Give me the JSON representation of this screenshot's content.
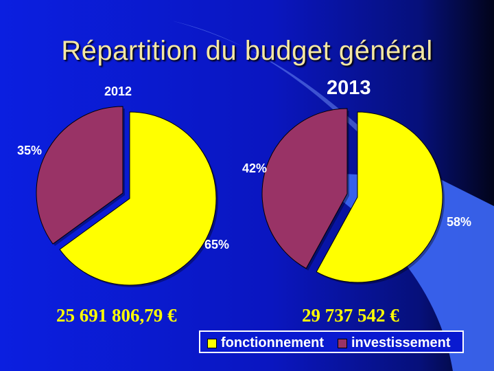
{
  "title": "Répartition du budget général",
  "chart_data": [
    {
      "type": "pie",
      "title": "2012",
      "categories": [
        "fonctionnement",
        "investissement"
      ],
      "values": [
        65,
        35
      ],
      "value_labels": [
        "65%",
        "35%"
      ],
      "total": "25 691 806,79 €",
      "colors": [
        "#ffff00",
        "#993366"
      ]
    },
    {
      "type": "pie",
      "title": "2013",
      "categories": [
        "fonctionnement",
        "investissement"
      ],
      "values": [
        58,
        42
      ],
      "value_labels": [
        "58%",
        "42%"
      ],
      "total": "29 737 542 €",
      "colors": [
        "#ffff00",
        "#993366"
      ]
    }
  ],
  "legend": {
    "placement": "bottom-right",
    "items": [
      {
        "label": "fonctionnement",
        "color": "#ffff00"
      },
      {
        "label": "investissement",
        "color": "#993366"
      }
    ]
  },
  "colors": {
    "background": "#0a1ad0",
    "accent": "#3366ff",
    "title": "#f4e7a4",
    "totals": "#ffff00"
  }
}
